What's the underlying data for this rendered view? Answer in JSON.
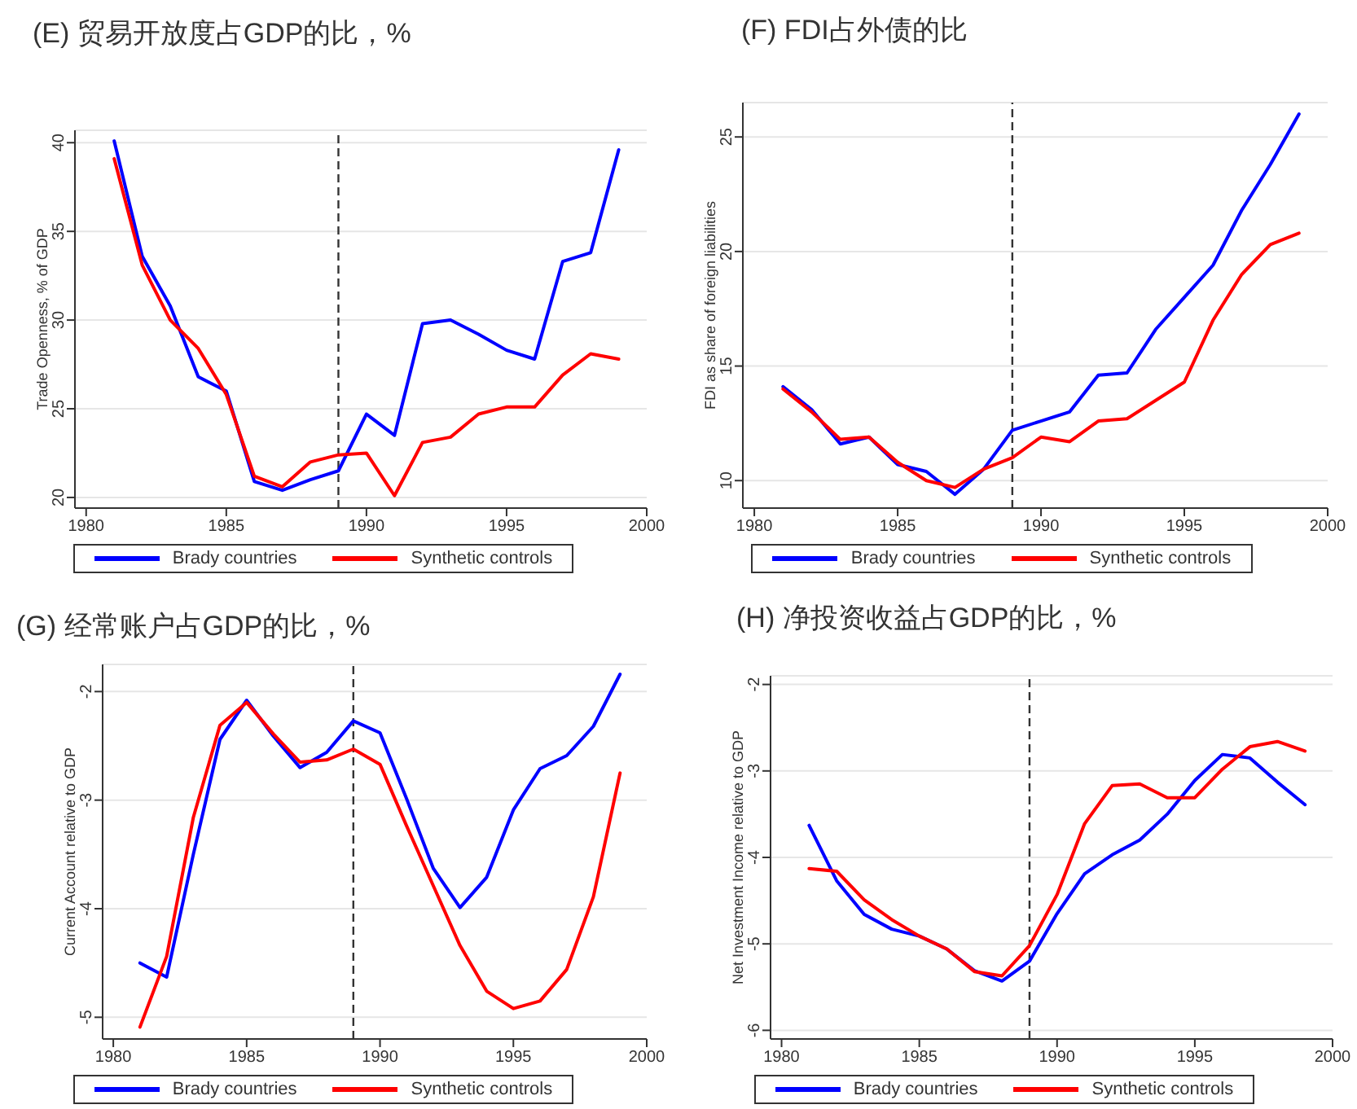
{
  "chart_data": [
    {
      "type": "line",
      "title": "(E) 贸易开放度占GDP的比，%",
      "ylabel": "Trade Openness, % of GDP",
      "x": [
        1981,
        1982,
        1983,
        1984,
        1985,
        1986,
        1987,
        1988,
        1989,
        1990,
        1991,
        1992,
        1993,
        1994,
        1995,
        1996,
        1997,
        1998,
        1999
      ],
      "series": [
        {
          "name": "Brady countries",
          "color": "#0000ff",
          "values": [
            40.1,
            33.6,
            30.8,
            26.8,
            26.0,
            20.9,
            20.4,
            21.0,
            21.5,
            24.7,
            23.5,
            29.8,
            30.0,
            29.2,
            28.3,
            27.8,
            33.3,
            33.8,
            39.6
          ]
        },
        {
          "name": "Synthetic controls",
          "color": "#ff0000",
          "values": [
            39.1,
            33.1,
            30.0,
            28.4,
            25.8,
            21.2,
            20.6,
            22.0,
            22.4,
            22.5,
            20.1,
            23.1,
            23.4,
            24.7,
            25.1,
            25.1,
            26.9,
            28.1,
            27.8
          ]
        }
      ],
      "xlim": [
        1979.6,
        2000
      ],
      "xticks": [
        1980,
        1985,
        1990,
        1995,
        2000
      ],
      "ylim": [
        19.4,
        40.7
      ],
      "yticks": [
        20,
        25,
        30,
        35,
        40
      ],
      "ref_lines": [
        {
          "axis": "x",
          "value": 1989,
          "color": "#333333",
          "line_style": "dashed"
        }
      ],
      "grid": "y",
      "legend": "bottom"
    },
    {
      "type": "line",
      "title": "(F) FDI占外债的比",
      "ylabel": "FDI as share of foreign liabilities",
      "x": [
        1981,
        1982,
        1983,
        1984,
        1985,
        1986,
        1987,
        1988,
        1989,
        1990,
        1991,
        1992,
        1993,
        1994,
        1995,
        1996,
        1997,
        1998,
        1999
      ],
      "series": [
        {
          "name": "Brady countries",
          "color": "#0000ff",
          "values": [
            14.1,
            13.1,
            11.6,
            11.9,
            10.7,
            10.4,
            9.4,
            10.5,
            12.2,
            12.6,
            13.0,
            14.6,
            14.7,
            16.6,
            18.0,
            19.4,
            21.8,
            23.8,
            26.0
          ]
        },
        {
          "name": "Synthetic controls",
          "color": "#ff0000",
          "values": [
            14.0,
            13.0,
            11.8,
            11.9,
            10.8,
            10.0,
            9.7,
            10.5,
            11.0,
            11.9,
            11.7,
            12.6,
            12.7,
            13.5,
            14.3,
            17.0,
            19.0,
            20.3,
            20.8
          ]
        }
      ],
      "xlim": [
        1979.6,
        2000
      ],
      "xticks": [
        1980,
        1985,
        1990,
        1995,
        2000
      ],
      "ylim": [
        8.8,
        26.5
      ],
      "yticks": [
        10,
        15,
        20,
        25
      ],
      "ref_lines": [
        {
          "axis": "x",
          "value": 1989,
          "color": "#333333",
          "line_style": "dashed"
        }
      ],
      "grid": "y",
      "legend": "bottom"
    },
    {
      "type": "line",
      "title": "(G) 经常账户占GDP的比，%",
      "ylabel": "Current Account relative to GDP",
      "x": [
        1981,
        1982,
        1983,
        1984,
        1985,
        1986,
        1987,
        1988,
        1989,
        1990,
        1991,
        1992,
        1993,
        1994,
        1995,
        1996,
        1997,
        1998,
        1999
      ],
      "series": [
        {
          "name": "Brady countries",
          "color": "#0000ff",
          "values": [
            -4.5,
            -4.63,
            -3.5,
            -2.44,
            -2.08,
            -2.41,
            -2.7,
            -2.56,
            -2.27,
            -2.38,
            -2.99,
            -3.63,
            -3.99,
            -3.71,
            -3.09,
            -2.71,
            -2.59,
            -2.32,
            -1.84
          ]
        },
        {
          "name": "Synthetic controls",
          "color": "#ff0000",
          "values": [
            -5.09,
            -4.44,
            -3.16,
            -2.31,
            -2.1,
            -2.39,
            -2.65,
            -2.63,
            -2.53,
            -2.67,
            -3.24,
            -3.79,
            -4.34,
            -4.76,
            -4.92,
            -4.85,
            -4.56,
            -3.89,
            -2.75
          ]
        }
      ],
      "xlim": [
        1979.6,
        2000
      ],
      "xticks": [
        1980,
        1985,
        1990,
        1995,
        2000
      ],
      "ylim": [
        -5.2,
        -1.75
      ],
      "yticks": [
        -5,
        -4,
        -3,
        -2
      ],
      "ref_lines": [
        {
          "axis": "x",
          "value": 1989,
          "color": "#333333",
          "line_style": "dashed"
        }
      ],
      "grid": "y",
      "legend": "bottom"
    },
    {
      "type": "line",
      "title": "(H) 净投资收益占GDP的比，%",
      "ylabel": "Net Investment Income relative to GDP",
      "x": [
        1981,
        1982,
        1983,
        1984,
        1985,
        1986,
        1987,
        1988,
        1989,
        1990,
        1991,
        1992,
        1993,
        1994,
        1995,
        1996,
        1997,
        1998,
        1999
      ],
      "series": [
        {
          "name": "Brady countries",
          "color": "#0000ff",
          "values": [
            -3.63,
            -4.27,
            -4.66,
            -4.83,
            -4.91,
            -5.06,
            -5.31,
            -5.43,
            -5.2,
            -4.65,
            -4.19,
            -3.97,
            -3.8,
            -3.5,
            -3.11,
            -2.81,
            -2.85,
            -3.13,
            -3.39
          ]
        },
        {
          "name": "Synthetic controls",
          "color": "#ff0000",
          "values": [
            -4.13,
            -4.16,
            -4.49,
            -4.72,
            -4.91,
            -5.06,
            -5.32,
            -5.37,
            -5.02,
            -4.43,
            -3.61,
            -3.17,
            -3.15,
            -3.31,
            -3.31,
            -2.98,
            -2.72,
            -2.66,
            -2.77
          ]
        }
      ],
      "xlim": [
        1979.6,
        2000
      ],
      "xticks": [
        1980,
        1985,
        1990,
        1995,
        2000
      ],
      "ylim": [
        -6.1,
        -1.9
      ],
      "yticks": [
        -6,
        -5,
        -4,
        -3,
        -2
      ],
      "ref_lines": [
        {
          "axis": "x",
          "value": 1989,
          "color": "#333333",
          "line_style": "dashed"
        }
      ],
      "grid": "y",
      "legend": "bottom"
    }
  ]
}
